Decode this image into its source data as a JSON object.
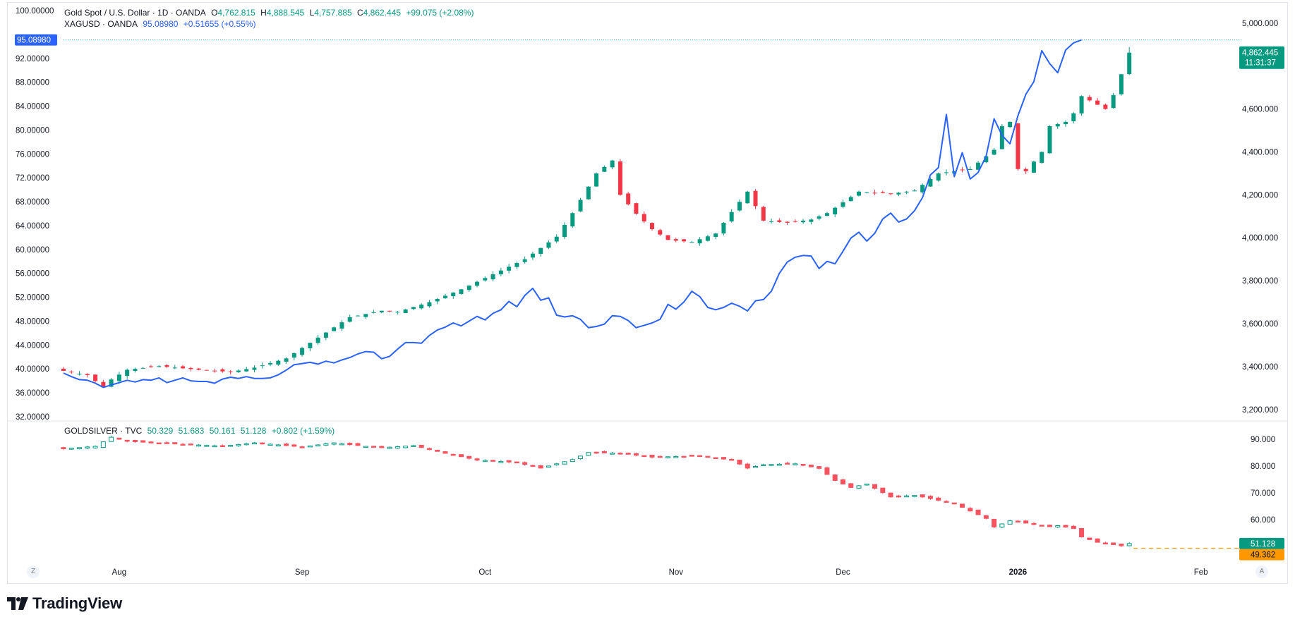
{
  "colors": {
    "up": "#089981",
    "down": "#f23645",
    "silver_line": "#2962ff",
    "ratio_up": "#089981",
    "ratio_down": "#f7525f",
    "pine_orange": "#ff9800"
  },
  "chart_data": [
    {
      "type": "candlestick",
      "title": "Gold Spot / U.S. Dollar · 1D · OANDA",
      "ohlc_legend": {
        "open_label": "O",
        "open": "4,762.815",
        "high_label": "H",
        "high": "4,888.545",
        "low_label": "L",
        "low": "4,757.885",
        "close_label": "C",
        "close": "4,862.445",
        "change": "+99.075 (+2.08%)"
      },
      "last_price_label": "4,862.445",
      "countdown": "11:31:37",
      "right_axis_ticks": [
        "5,000.000",
        "4,600.000",
        "4,400.000",
        "4,200.000",
        "4,000.000",
        "3,800.000",
        "3,600.000",
        "3,400.000",
        "3,200.000"
      ],
      "right_axis_tick_values": [
        5000,
        4600,
        4400,
        4200,
        4000,
        3800,
        3600,
        3400,
        3200
      ],
      "ylim": [
        3150,
        5075
      ],
      "keypoints": [
        [
          0,
          3380
        ],
        [
          3,
          3360
        ],
        [
          5,
          3305
        ],
        [
          6,
          3340
        ],
        [
          8,
          3385
        ],
        [
          12,
          3402
        ],
        [
          17,
          3385
        ],
        [
          21,
          3375
        ],
        [
          24,
          3395
        ],
        [
          28,
          3438
        ],
        [
          32,
          3535
        ],
        [
          36,
          3630
        ],
        [
          40,
          3660
        ],
        [
          42,
          3655
        ],
        [
          46,
          3700
        ],
        [
          50,
          3760
        ],
        [
          54,
          3830
        ],
        [
          58,
          3900
        ],
        [
          62,
          4005
        ],
        [
          64,
          4115
        ],
        [
          67,
          4300
        ],
        [
          69,
          4360
        ],
        [
          70,
          4200
        ],
        [
          72,
          4112
        ],
        [
          74,
          4040
        ],
        [
          76,
          3990
        ],
        [
          79,
          3980
        ],
        [
          82,
          4020
        ],
        [
          84,
          4120
        ],
        [
          86,
          4215
        ],
        [
          88,
          4080
        ],
        [
          91,
          4070
        ],
        [
          94,
          4085
        ],
        [
          96,
          4115
        ],
        [
          100,
          4215
        ],
        [
          104,
          4205
        ],
        [
          107,
          4220
        ],
        [
          110,
          4300
        ],
        [
          114,
          4320
        ],
        [
          117,
          4410
        ],
        [
          118,
          4520
        ],
        [
          119,
          4540
        ],
        [
          120,
          4320
        ],
        [
          121,
          4310
        ],
        [
          123,
          4400
        ],
        [
          124,
          4520
        ],
        [
          126,
          4540
        ],
        [
          127,
          4580
        ],
        [
          128,
          4660
        ],
        [
          131,
          4600
        ],
        [
          132,
          4665
        ],
        [
          133,
          4762
        ],
        [
          134,
          4862
        ]
      ]
    },
    {
      "type": "line",
      "title": "XAGUSD · OANDA",
      "last_value": "95.08980",
      "change": "+0.51655 (+0.55%)",
      "left_axis_ticks": [
        "100.00000",
        "92.00000",
        "88.00000",
        "84.00000",
        "80.00000",
        "76.00000",
        "72.00000",
        "68.00000",
        "64.00000",
        "60.00000",
        "56.00000",
        "52.00000",
        "48.00000",
        "44.00000",
        "40.00000",
        "36.00000",
        "32.00000"
      ],
      "left_axis_tick_values": [
        100,
        92,
        88,
        84,
        80,
        76,
        72,
        68,
        64,
        60,
        56,
        52,
        48,
        44,
        40,
        36,
        32
      ],
      "ylim": [
        31.4,
        100.6
      ],
      "values": [
        39.3,
        38.7,
        38.2,
        38.1,
        37.6,
        36.9,
        37.3,
        37.7,
        38.1,
        37.8,
        38.2,
        38.1,
        38.5,
        37.7,
        38.1,
        38.5,
        38.0,
        37.9,
        37.9,
        37.6,
        38.3,
        38.6,
        38.4,
        38.7,
        38.4,
        38.4,
        38.5,
        39.0,
        39.8,
        40.7,
        40.9,
        41.1,
        40.8,
        41.3,
        41.0,
        41.5,
        41.9,
        42.5,
        42.9,
        42.8,
        41.7,
        42.1,
        43.3,
        44.4,
        44.4,
        44.3,
        45.6,
        46.5,
        47.0,
        47.7,
        47.2,
        48.0,
        48.8,
        48.2,
        49.3,
        49.9,
        51.3,
        50.4,
        52.3,
        53.5,
        51.5,
        51.9,
        49.0,
        48.7,
        48.9,
        48.3,
        46.9,
        47.1,
        47.5,
        48.9,
        48.8,
        48.1,
        46.9,
        47.3,
        47.7,
        48.3,
        50.8,
        50.0,
        51.2,
        53.0,
        52.1,
        50.3,
        49.9,
        50.3,
        51.0,
        50.5,
        49.7,
        51.4,
        51.6,
        53.0,
        56.0,
        57.9,
        58.7,
        59.0,
        58.9,
        56.8,
        58.0,
        57.6,
        59.7,
        61.9,
        62.9,
        61.4,
        62.7,
        65.1,
        66.1,
        64.6,
        65.1,
        66.5,
        68.7,
        72.5,
        73.7,
        82.6,
        72.2,
        76.2,
        71.8,
        72.9,
        75.6,
        81.9,
        79.1,
        77.7,
        82.4,
        86.0,
        88.1,
        93.3,
        91.1,
        89.6,
        93.4,
        94.6,
        95.1
      ]
    },
    {
      "type": "candlestick",
      "title": "GOLDSILVER · TVC",
      "ohlc_legend": {
        "open": "50.329",
        "high": "51.683",
        "low": "50.161",
        "close": "51.128",
        "change": "+0.802 (+1.59%)"
      },
      "right_axis_ticks": [
        "90.000",
        "80.000",
        "70.000",
        "60.000"
      ],
      "right_axis_tick_values": [
        90,
        80,
        70,
        60
      ],
      "ylim": [
        43.5,
        96.5
      ],
      "last_value": "51.128",
      "indicator_value": "49.362",
      "keypoints": [
        [
          0,
          86.4
        ],
        [
          4,
          87.3
        ],
        [
          6,
          90.7
        ],
        [
          8,
          89.2
        ],
        [
          14,
          88.2
        ],
        [
          20,
          87.4
        ],
        [
          24,
          88.6
        ],
        [
          30,
          87.1
        ],
        [
          34,
          88.6
        ],
        [
          38,
          87.3
        ],
        [
          40,
          86.8
        ],
        [
          44,
          87.6
        ],
        [
          48,
          84.7
        ],
        [
          52,
          82.2
        ],
        [
          57,
          81.3
        ],
        [
          60,
          79.2
        ],
        [
          64,
          82.4
        ],
        [
          66,
          85.0
        ],
        [
          70,
          84.7
        ],
        [
          74,
          83.3
        ],
        [
          80,
          83.7
        ],
        [
          84,
          82.2
        ],
        [
          86,
          79.2
        ],
        [
          88,
          80.5
        ],
        [
          92,
          80.8
        ],
        [
          95,
          79.1
        ],
        [
          97,
          74.6
        ],
        [
          99,
          72.0
        ],
        [
          101,
          73.3
        ],
        [
          104,
          68.5
        ],
        [
          107,
          69.1
        ],
        [
          112,
          66.0
        ],
        [
          116,
          60.5
        ],
        [
          117,
          57.3
        ],
        [
          119,
          59.6
        ],
        [
          122,
          58.3
        ],
        [
          124,
          57.4
        ],
        [
          125,
          57.8
        ],
        [
          127,
          56.7
        ],
        [
          128,
          53.6
        ],
        [
          130,
          51.6
        ],
        [
          133,
          50.3
        ],
        [
          134,
          51.1
        ]
      ]
    }
  ],
  "time_axis": {
    "labels": [
      {
        "text": "Aug",
        "bar": 7
      },
      {
        "text": "Sep",
        "bar": 30
      },
      {
        "text": "Oct",
        "bar": 53
      },
      {
        "text": "Nov",
        "bar": 77
      },
      {
        "text": "Dec",
        "bar": 98
      },
      {
        "text": "2026",
        "bar": 120
      },
      {
        "text": "Feb",
        "bar": 143
      }
    ]
  },
  "ui": {
    "zoom_button": "Z",
    "auto_button": "A",
    "brand": "TradingView"
  }
}
